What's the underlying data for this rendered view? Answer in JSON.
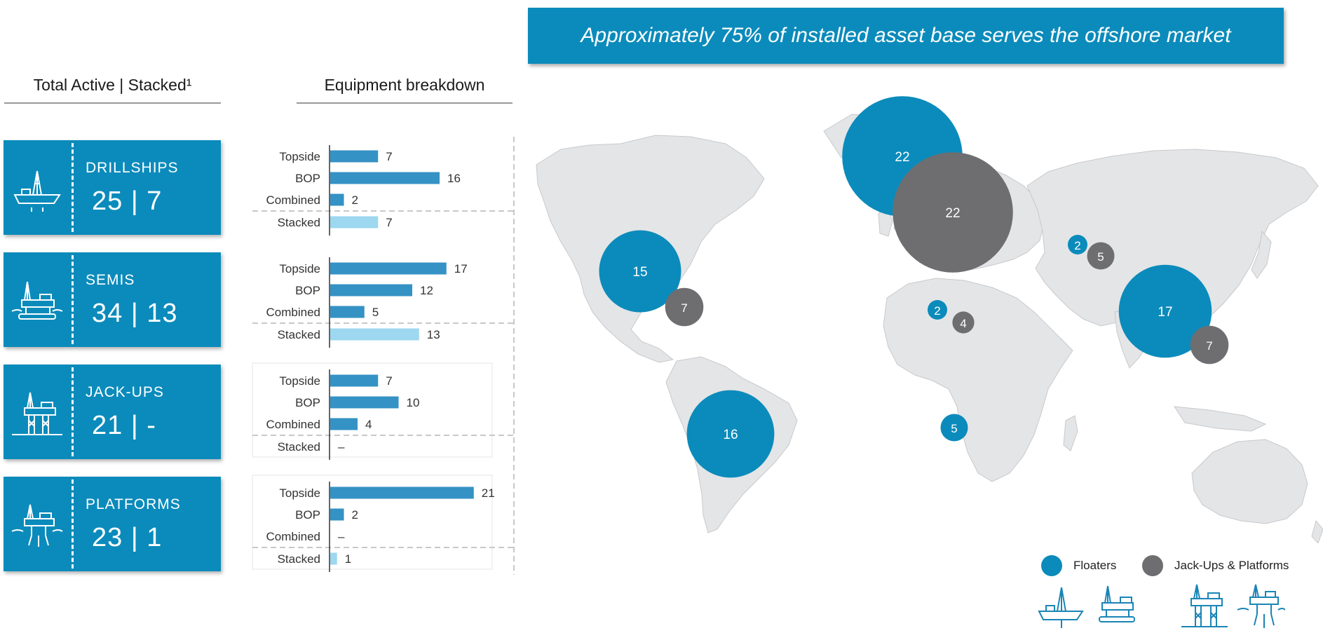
{
  "banner": {
    "title": "Approximately 75% of installed asset base serves the offshore market"
  },
  "headings": {
    "total": "Total Active | Stacked¹",
    "breakdown": "Equipment breakdown"
  },
  "cards": [
    {
      "name": "DRILLSHIPS",
      "counts": "25 | 7",
      "icon": "drillship-icon"
    },
    {
      "name": "SEMIS",
      "counts": "34 | 13",
      "icon": "semi-submersible-icon"
    },
    {
      "name": "JACK-UPS",
      "counts": "21 | -",
      "icon": "jack-up-icon"
    },
    {
      "name": "PLATFORMS",
      "counts": "23 | 1",
      "icon": "platform-icon"
    }
  ],
  "legend": {
    "floaters": "Floaters",
    "jackups": "Jack-Ups & Platforms"
  },
  "colors": {
    "brand": "#0b8bbb",
    "bar": "#3592c4",
    "stacked_bar": "#9dd7f0",
    "grey_bubble": "#6e6e70",
    "land": "#e4e5e7"
  },
  "chart_data": [
    {
      "type": "bar",
      "orientation": "horizontal",
      "title": "Equipment breakdown",
      "categories": [
        "Topside",
        "BOP",
        "Combined",
        "Stacked"
      ],
      "groups": [
        {
          "name": "DRILLSHIPS",
          "values": [
            7,
            16,
            2,
            7
          ],
          "labels": [
            "7",
            "16",
            "2",
            "7"
          ]
        },
        {
          "name": "SEMIS",
          "values": [
            17,
            12,
            5,
            13
          ],
          "labels": [
            "17",
            "12",
            "5",
            "13"
          ]
        },
        {
          "name": "JACK-UPS",
          "values": [
            7,
            10,
            4,
            0
          ],
          "labels": [
            "7",
            "10",
            "4",
            "–"
          ]
        },
        {
          "name": "PLATFORMS",
          "values": [
            21,
            2,
            0,
            1
          ],
          "labels": [
            "21",
            "2",
            "–",
            "1"
          ]
        }
      ]
    },
    {
      "type": "scatter",
      "subtype": "bubble-map",
      "title": "Approximately 75% of installed asset base serves the offshore market",
      "series": [
        {
          "name": "Floaters",
          "points": [
            {
              "region": "North Sea",
              "value": 22
            },
            {
              "region": "Gulf of Mexico",
              "value": 15
            },
            {
              "region": "Brazil",
              "value": 16
            },
            {
              "region": "Mediterranean",
              "value": 2
            },
            {
              "region": "West Africa",
              "value": 5
            },
            {
              "region": "Caspian",
              "value": 2
            },
            {
              "region": "Asia Pacific",
              "value": 17
            }
          ]
        },
        {
          "name": "Jack-Ups & Platforms",
          "points": [
            {
              "region": "North Sea",
              "value": 22
            },
            {
              "region": "Gulf of Mexico",
              "value": 7
            },
            {
              "region": "Middle East",
              "value": 4
            },
            {
              "region": "Caspian",
              "value": 5
            },
            {
              "region": "Asia Pacific",
              "value": 7
            }
          ]
        }
      ]
    }
  ]
}
